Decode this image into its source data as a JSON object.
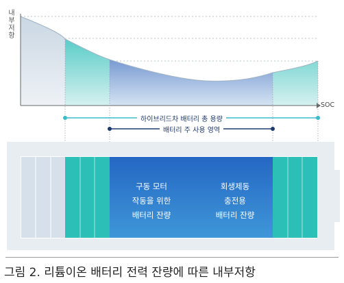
{
  "axis": {
    "y_label_chars": [
      "내",
      "부",
      "저",
      "항"
    ],
    "x_label": "SOC"
  },
  "ranges": {
    "hybrid_total": "하이브리드차 배터리 총 용량",
    "main_use": "배터리 주 사용 영역"
  },
  "battery": {
    "left_block": [
      "구동 모터",
      "작동을 위한",
      "배터리 잔량"
    ],
    "right_block": [
      "회생제동",
      "충전용",
      "배터리 잔량"
    ]
  },
  "caption": "그림 2. 리튬이온 배터리 전력 잔량에 따른 내부저항",
  "colors": {
    "gray_fill": "#dde6ee",
    "teal": "#2bbfb8",
    "blue_dark": "#1d4fb0",
    "blue_light": "#4c9ad8",
    "line_accent": "#3bbac8",
    "marker_dark": "#1f3a6e"
  }
}
